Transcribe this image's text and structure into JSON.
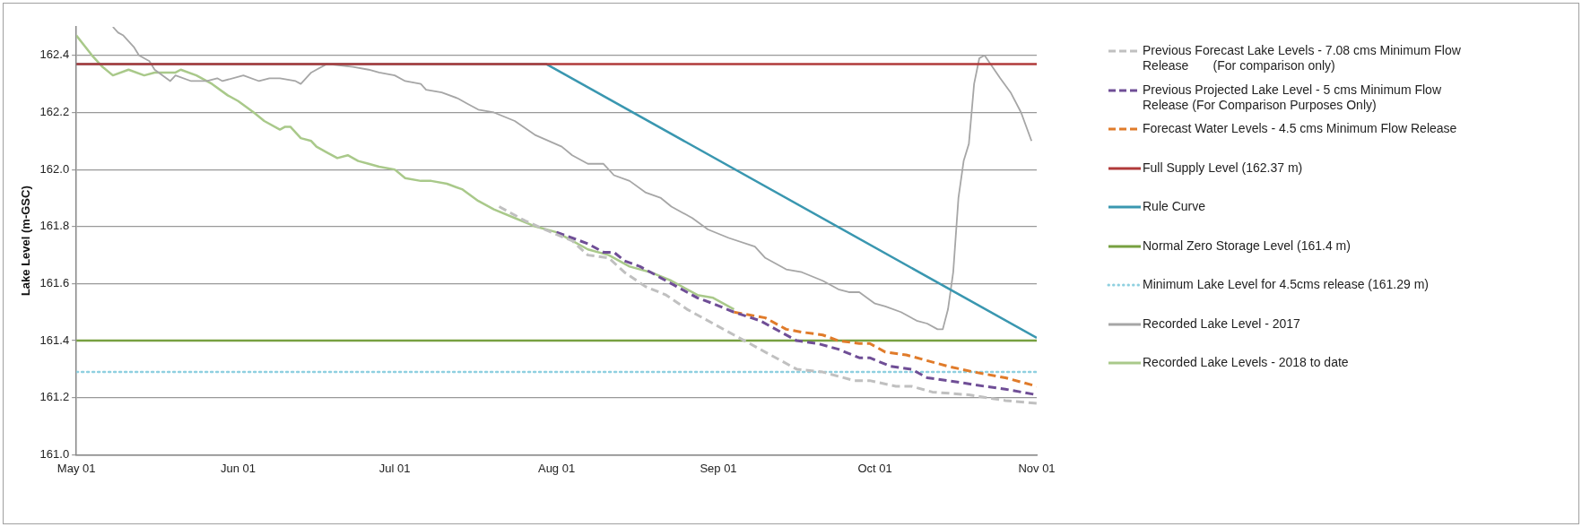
{
  "chart_data": {
    "type": "line",
    "ylabel": "Lake Level (m-GSC)",
    "xlim": [
      "--05-01",
      "--11-01"
    ],
    "xticks": [
      {
        "value": "--05-01",
        "label": "May 01"
      },
      {
        "value": "--06-01",
        "label": "Jun 01"
      },
      {
        "value": "--07-01",
        "label": "Jul 01"
      },
      {
        "value": "--08-01",
        "label": "Aug 01"
      },
      {
        "value": "--09-01",
        "label": "Sep 01"
      },
      {
        "value": "--10-01",
        "label": "Oct 01"
      },
      {
        "value": "--11-01",
        "label": "Nov 01"
      }
    ],
    "ylim": [
      161.0,
      162.5
    ],
    "yticks": [
      {
        "value": 161.0,
        "label": "161.0"
      },
      {
        "value": 161.2,
        "label": "161.2"
      },
      {
        "value": 161.4,
        "label": "161.4"
      },
      {
        "value": 161.6,
        "label": "161.6"
      },
      {
        "value": 161.8,
        "label": "161.8"
      },
      {
        "value": 162.0,
        "label": "162.0"
      },
      {
        "value": 162.2,
        "label": "162.2"
      },
      {
        "value": 162.4,
        "label": "162.4"
      }
    ],
    "grid": "y",
    "legend": "right",
    "marker": "none",
    "series": [
      {
        "name": "Previous Forecast Lake Levels - 7.08 cms Minimum Flow Release       (For comparison only)",
        "color": "#c0c0c0",
        "line_style": "dashed",
        "x": [
          "--07-21",
          "--07-26",
          "--07-31",
          "--08-04",
          "--08-07",
          "--08-11",
          "--08-14",
          "--08-18",
          "--08-22",
          "--08-26",
          "--08-29",
          "--09-04",
          "--09-09",
          "--09-13",
          "--09-16",
          "--09-21",
          "--09-27",
          "--09-30",
          "--10-05",
          "--10-08",
          "--10-12",
          "--10-19",
          "--10-26",
          "--11-01"
        ],
        "values": [
          161.87,
          161.82,
          161.78,
          161.75,
          161.7,
          161.69,
          161.64,
          161.59,
          161.56,
          161.51,
          161.48,
          161.42,
          161.37,
          161.33,
          161.3,
          161.29,
          161.26,
          161.26,
          161.24,
          161.24,
          161.22,
          161.21,
          161.19,
          161.18
        ]
      },
      {
        "name": "Previous Projected Lake Level - 5 cms Minimum Flow Release (For Comparison Purposes Only)",
        "color": "#6f4e96",
        "line_style": "dashed",
        "x": [
          "--08-01",
          "--08-04",
          "--08-07",
          "--08-10",
          "--08-12",
          "--08-14",
          "--08-17",
          "--08-21",
          "--08-24",
          "--08-28",
          "--08-31",
          "--09-04",
          "--09-09",
          "--09-13",
          "--09-16",
          "--09-20",
          "--09-24",
          "--09-28",
          "--09-30",
          "--10-04",
          "--10-08",
          "--10-11",
          "--10-15",
          "--10-22",
          "--10-26",
          "--11-01"
        ],
        "values": [
          161.78,
          161.76,
          161.74,
          161.71,
          161.71,
          161.68,
          161.66,
          161.62,
          161.59,
          161.55,
          161.53,
          161.5,
          161.47,
          161.43,
          161.4,
          161.39,
          161.37,
          161.34,
          161.34,
          161.31,
          161.3,
          161.27,
          161.26,
          161.24,
          161.23,
          161.21
        ]
      },
      {
        "name": "Forecast Water Levels - 4.5 cms Minimum Flow Release",
        "color": "#e07b2a",
        "line_style": "dashed",
        "x": [
          "--09-04",
          "--09-10",
          "--09-14",
          "--09-17",
          "--09-21",
          "--09-24",
          "--09-28",
          "--09-30",
          "--10-03",
          "--10-07",
          "--10-11",
          "--10-15",
          "--10-20",
          "--10-26",
          "--11-01"
        ],
        "values": [
          161.5,
          161.48,
          161.44,
          161.43,
          161.42,
          161.4,
          161.39,
          161.39,
          161.36,
          161.35,
          161.33,
          161.31,
          161.29,
          161.27,
          161.24
        ]
      },
      {
        "name": "Full Supply Level (162.37 m)",
        "color": "#b03a3a",
        "line_style": "solid",
        "x": [
          "--05-01",
          "--11-01"
        ],
        "values": [
          162.37,
          162.37
        ]
      },
      {
        "name": "Rule Curve",
        "color": "#3a97b0",
        "line_style": "solid",
        "x": [
          "--05-01",
          "--07-30",
          "--11-01"
        ],
        "values": [
          162.37,
          162.37,
          161.41
        ]
      },
      {
        "name": "Normal Zero Storage Level (161.4 m)",
        "color": "#77a040",
        "line_style": "solid",
        "x": [
          "--05-01",
          "--11-01"
        ],
        "values": [
          161.4,
          161.4
        ]
      },
      {
        "name": "Minimum Lake Level for 4.5cms release (161.29 m)",
        "color": "#8fd0e0",
        "line_style": "dotted",
        "x": [
          "--05-01",
          "--11-01"
        ],
        "values": [
          161.29,
          161.29
        ]
      },
      {
        "name": "Recorded Lake Level - 2017",
        "color": "#a6a6a6",
        "line_style": "solid",
        "x": [
          "--05-08",
          "--05-09",
          "--05-10",
          "--05-12",
          "--05-13",
          "--05-15",
          "--05-16",
          "--05-19",
          "--05-20",
          "--05-23",
          "--05-26",
          "--05-28",
          "--05-29",
          "--06-02",
          "--06-05",
          "--06-07",
          "--06-09",
          "--06-12",
          "--06-13",
          "--06-15",
          "--06-16",
          "--06-18",
          "--06-23",
          "--06-26",
          "--06-28",
          "--07-01",
          "--07-03",
          "--07-06",
          "--07-07",
          "--07-10",
          "--07-13",
          "--07-15",
          "--07-17",
          "--07-20",
          "--07-24",
          "--07-28",
          "--08-02",
          "--08-04",
          "--08-07",
          "--08-10",
          "--08-12",
          "--08-15",
          "--08-18",
          "--08-21",
          "--08-23",
          "--08-27",
          "--08-30",
          "--09-03",
          "--09-08",
          "--09-10",
          "--09-14",
          "--09-17",
          "--09-21",
          "--09-24",
          "--09-26",
          "--09-28",
          "--10-01",
          "--10-03",
          "--10-06",
          "--10-09",
          "--10-11",
          "--10-13",
          "--10-14",
          "--10-15",
          "--10-16",
          "--10-17",
          "--10-18",
          "--10-19",
          "--10-20",
          "--10-21",
          "--10-22",
          "--10-25",
          "--10-27",
          "--10-29",
          "--10-31"
        ],
        "values": [
          162.5,
          162.48,
          162.47,
          162.43,
          162.4,
          162.38,
          162.35,
          162.31,
          162.33,
          162.31,
          162.31,
          162.32,
          162.31,
          162.33,
          162.31,
          162.32,
          162.32,
          162.31,
          162.3,
          162.34,
          162.35,
          162.37,
          162.36,
          162.35,
          162.34,
          162.33,
          162.31,
          162.3,
          162.28,
          162.27,
          162.25,
          162.23,
          162.21,
          162.2,
          162.17,
          162.12,
          162.08,
          162.05,
          162.02,
          162.02,
          161.98,
          161.96,
          161.92,
          161.9,
          161.87,
          161.83,
          161.79,
          161.76,
          161.73,
          161.69,
          161.65,
          161.64,
          161.61,
          161.58,
          161.57,
          161.57,
          161.53,
          161.52,
          161.5,
          161.47,
          161.46,
          161.44,
          161.44,
          161.51,
          161.64,
          161.9,
          162.03,
          162.09,
          162.3,
          162.39,
          162.4,
          162.32,
          162.27,
          162.2,
          162.1
        ]
      },
      {
        "name": "Recorded Lake Levels - 2018 to date",
        "color": "#a9c98a",
        "line_style": "solid",
        "x": [
          "--05-01",
          "--05-04",
          "--05-06",
          "--05-08",
          "--05-11",
          "--05-14",
          "--05-16",
          "--05-20",
          "--05-21",
          "--05-24",
          "--05-27",
          "--05-30",
          "--06-01",
          "--06-04",
          "--06-06",
          "--06-09",
          "--06-10",
          "--06-11",
          "--06-13",
          "--06-15",
          "--06-16",
          "--06-18",
          "--06-20",
          "--06-22",
          "--06-24",
          "--06-26",
          "--06-28",
          "--07-01",
          "--07-03",
          "--07-06",
          "--07-08",
          "--07-11",
          "--07-14",
          "--07-17",
          "--07-20",
          "--07-24",
          "--07-28",
          "--08-01",
          "--08-04",
          "--08-07",
          "--08-11",
          "--08-15",
          "--08-19",
          "--08-23",
          "--08-28",
          "--08-31",
          "--09-04"
        ],
        "values": [
          162.47,
          162.4,
          162.36,
          162.33,
          162.35,
          162.33,
          162.34,
          162.34,
          162.35,
          162.33,
          162.3,
          162.26,
          162.24,
          162.2,
          162.17,
          162.14,
          162.15,
          162.15,
          162.11,
          162.1,
          162.08,
          162.06,
          162.04,
          162.05,
          162.03,
          162.02,
          162.01,
          162.0,
          161.97,
          161.96,
          161.96,
          161.95,
          161.93,
          161.89,
          161.86,
          161.83,
          161.8,
          161.78,
          161.75,
          161.72,
          161.7,
          161.66,
          161.64,
          161.61,
          161.56,
          161.55,
          161.51
        ]
      }
    ]
  }
}
